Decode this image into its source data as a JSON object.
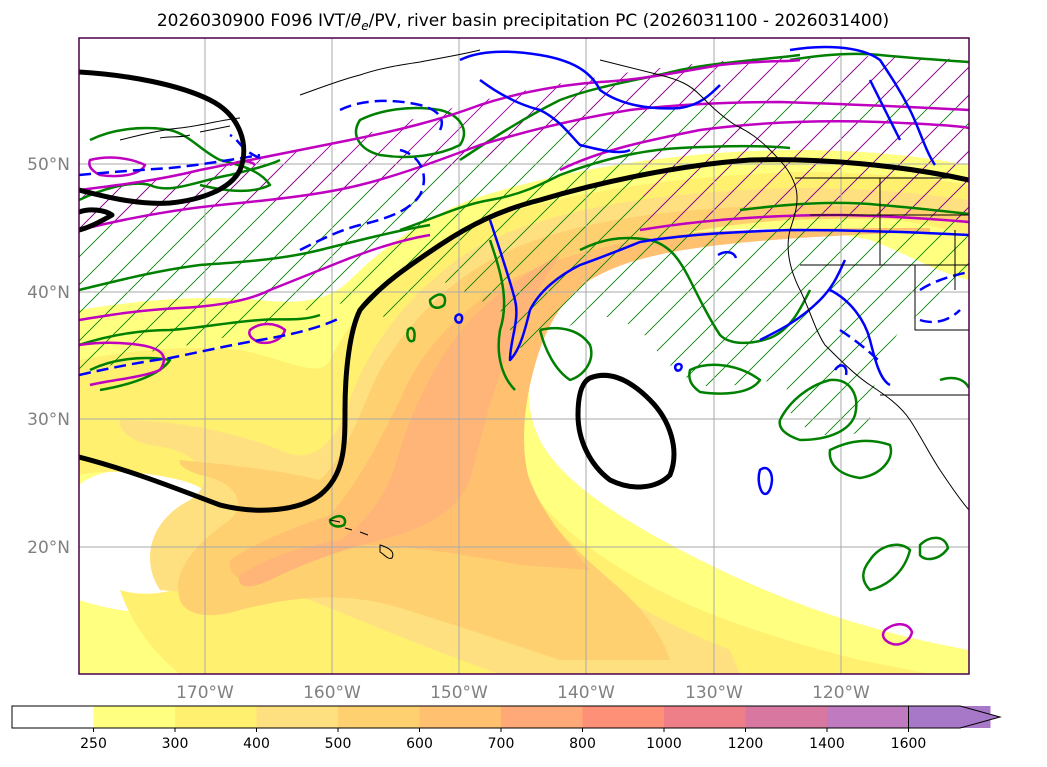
{
  "title": "2026030900 F096 IVT/θe/PV, river basin precipitation PC (2026031100 - 2026031400)",
  "title_parts": {
    "prefix": "2026030900 F096 IVT/",
    "theta": "θ",
    "theta_sub": "e",
    "suffix": "/PV, river basin precipitation PC (2026031100 - 2026031400)"
  },
  "lat_labels": [
    "50°N",
    "40°N",
    "30°N",
    "20°N"
  ],
  "lon_labels": [
    "170°W",
    "160°W",
    "150°W",
    "140°W",
    "130°W",
    "120°W"
  ],
  "colorbar": {
    "labels": [
      "250",
      "300",
      "400",
      "500",
      "600",
      "700",
      "800",
      "1000",
      "1200",
      "1400",
      "1600"
    ],
    "colors": [
      "#ffffff",
      "#ffff80",
      "#fff070",
      "#ffe080",
      "#ffd070",
      "#ffc070",
      "#ffa878",
      "#ff9078",
      "#ee7f88",
      "#d878a0",
      "#c07ac0",
      "#a878c8"
    ],
    "extend": "max"
  },
  "colors": {
    "ivt_light": "#ffff80",
    "ivt_mid": "#ffe27a",
    "ivt_strong": "#ffc97a",
    "ivt_max": "#ffb478",
    "green_contour": "#008000",
    "magenta_contour": "#c000c0",
    "blue_contour": "#0000ff",
    "black_contour": "#000000",
    "coastline": "#000000",
    "grid": "#aaaaaa",
    "frame": "#4b004b"
  }
}
